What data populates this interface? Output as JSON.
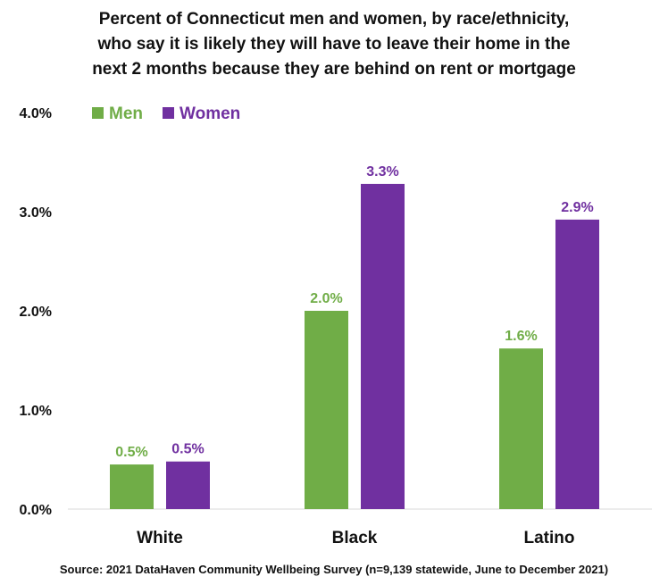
{
  "chart_data": {
    "type": "bar",
    "title_lines": [
      "Percent of Connecticut men and women, by race/ethnicity,",
      "who say it is likely they will have to leave their home in the",
      "next 2 months because they are behind on rent or mortgage"
    ],
    "categories": [
      "White",
      "Black",
      "Latino"
    ],
    "series": [
      {
        "name": "Men",
        "color": "#70ad47",
        "values": [
          0.45,
          2.0,
          1.62
        ],
        "labels": [
          "0.5%",
          "2.0%",
          "1.6%"
        ]
      },
      {
        "name": "Women",
        "color": "#7030a0",
        "values": [
          0.48,
          3.28,
          2.92
        ],
        "labels": [
          "0.5%",
          "3.3%",
          "2.9%"
        ]
      }
    ],
    "ylim": [
      0,
      4
    ],
    "yticks": [
      0,
      1,
      2,
      3,
      4
    ],
    "ytick_labels": [
      "0.0%",
      "1.0%",
      "2.0%",
      "3.0%",
      "4.0%"
    ],
    "xlabel": "",
    "ylabel": "",
    "legend_position": "top-left",
    "grid": false
  },
  "source": "Source: 2021 DataHaven Community Wellbeing Survey (n=9,139 statewide, June to December 2021)"
}
